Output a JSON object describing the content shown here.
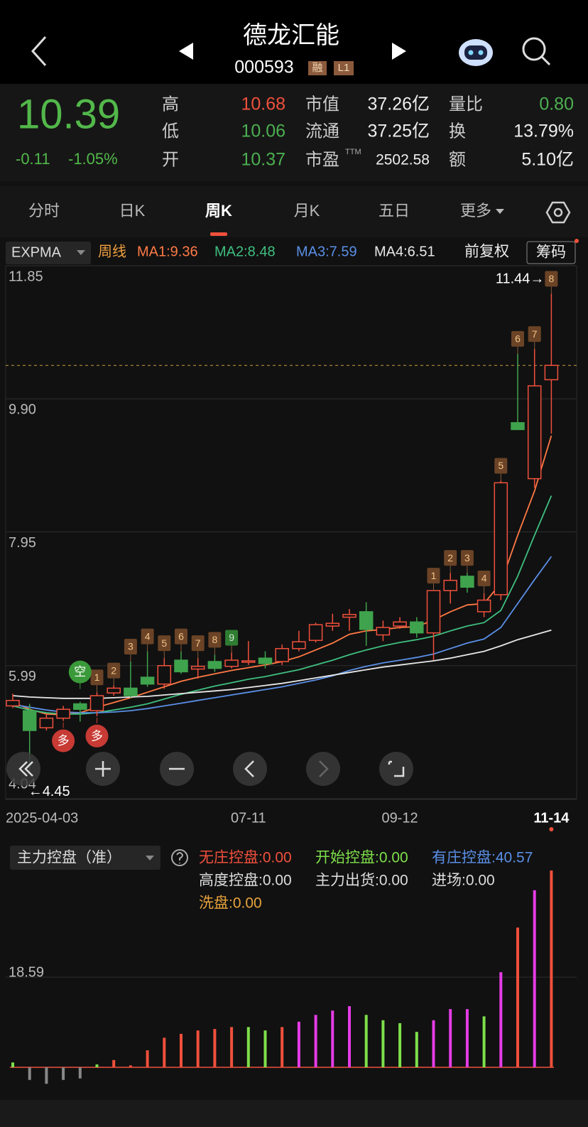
{
  "header": {
    "title": "德龙汇能",
    "code": "000593",
    "badges": [
      "融",
      "L1"
    ]
  },
  "quote": {
    "price": 10.39,
    "change": "-0.11",
    "change_pct": "-1.05%",
    "fields": [
      {
        "label": "高",
        "value": "10.68",
        "color": "#f0503c"
      },
      {
        "label": "低",
        "value": "10.06",
        "color": "#4caf50"
      },
      {
        "label": "开",
        "value": "10.37",
        "color": "#4caf50"
      },
      {
        "label": "市值",
        "value": "37.26亿",
        "color": "#eeeeee"
      },
      {
        "label": "流通",
        "value": "37.25亿",
        "color": "#eeeeee"
      },
      {
        "label": "市盈",
        "sup": "TTM",
        "value": "2502.58",
        "color": "#eeeeee"
      },
      {
        "label": "量比",
        "value": "0.80",
        "color": "#4caf50"
      },
      {
        "label": "换",
        "value": "13.79%",
        "color": "#eeeeee"
      },
      {
        "label": "额",
        "value": "5.10亿",
        "color": "#eeeeee"
      }
    ]
  },
  "tabs": [
    "分时",
    "日K",
    "周K",
    "月K",
    "五日",
    "更多"
  ],
  "active_tab": 2,
  "toolbar": {
    "indicator": "EXPMA",
    "period": "周线",
    "adjust": "前复权",
    "chips": "筹码"
  },
  "kline": {
    "type": "candlestick",
    "dates": [
      "2025-04-03",
      null,
      null,
      null,
      null,
      null,
      null,
      null,
      null,
      null,
      null,
      null,
      null,
      null,
      "07-11",
      null,
      null,
      null,
      null,
      null,
      null,
      null,
      null,
      "09-12",
      null,
      null,
      null,
      null,
      null,
      null,
      null,
      null,
      "11-14"
    ],
    "open": [
      5.4,
      5.33,
      5.08,
      5.22,
      5.43,
      5.33,
      5.59,
      5.66,
      5.82,
      5.72,
      6.07,
      5.94,
      6.05,
      5.98,
      6.04,
      6.1,
      6.05,
      6.24,
      6.36,
      6.57,
      6.7,
      6.78,
      6.44,
      6.57,
      6.63,
      6.47,
      7.09,
      7.3,
      6.78,
      7.03,
      9.55,
      8.73,
      10.18
    ],
    "high": [
      5.58,
      5.43,
      5.27,
      5.4,
      5.46,
      5.6,
      5.7,
      6.05,
      6.2,
      6.1,
      6.2,
      6.1,
      6.15,
      6.18,
      6.35,
      6.2,
      6.3,
      6.5,
      6.62,
      6.75,
      6.82,
      6.92,
      6.65,
      6.7,
      6.7,
      7.09,
      7.35,
      7.35,
      7.05,
      8.7,
      10.56,
      10.63,
      11.44
    ],
    "low": [
      5.37,
      4.45,
      5.04,
      5.18,
      5.17,
      5.25,
      5.55,
      5.52,
      5.68,
      5.65,
      5.87,
      5.8,
      5.9,
      5.95,
      6.0,
      5.95,
      6.0,
      6.2,
      6.33,
      6.5,
      6.5,
      6.28,
      6.35,
      6.53,
      6.4,
      6.07,
      6.9,
      7.06,
      6.7,
      6.95,
      9.45,
      8.6,
      9.39
    ],
    "close": [
      5.48,
      5.04,
      5.22,
      5.35,
      5.35,
      5.55,
      5.66,
      5.55,
      5.72,
      5.99,
      5.9,
      5.98,
      5.95,
      6.07,
      6.06,
      6.02,
      6.24,
      6.34,
      6.59,
      6.61,
      6.74,
      6.52,
      6.55,
      6.63,
      6.47,
      7.09,
      7.24,
      7.14,
      6.95,
      8.67,
      9.45,
      10.09,
      10.39
    ],
    "ylim": [
      4.04,
      11.85
    ],
    "yticks": [
      11.85,
      {
        "value": 9.9,
        "label": "9.90"
      },
      7.95,
      5.99,
      4.04
    ],
    "ma": [
      {
        "name": "MA1:9.36",
        "color": "#ff7a45",
        "values": [
          5.45,
          5.35,
          5.28,
          5.27,
          5.3,
          5.38,
          5.45,
          5.52,
          5.6,
          5.68,
          5.76,
          5.82,
          5.87,
          5.92,
          5.96,
          6.0,
          6.05,
          6.12,
          6.22,
          6.32,
          6.45,
          6.5,
          6.52,
          6.55,
          6.56,
          6.66,
          6.78,
          6.88,
          6.9,
          7.2,
          7.9,
          8.55,
          9.36
        ]
      },
      {
        "name": "MA2:8.48",
        "color": "#3fbf7f",
        "values": [
          5.4,
          5.34,
          5.3,
          5.28,
          5.28,
          5.3,
          5.34,
          5.38,
          5.43,
          5.5,
          5.57,
          5.63,
          5.69,
          5.74,
          5.79,
          5.83,
          5.88,
          5.93,
          6.0,
          6.07,
          6.15,
          6.22,
          6.28,
          6.33,
          6.37,
          6.42,
          6.5,
          6.57,
          6.62,
          6.8,
          7.3,
          7.9,
          8.48
        ]
      },
      {
        "name": "MA3:7.59",
        "color": "#5a8fe6",
        "values": [
          5.42,
          5.38,
          5.34,
          5.31,
          5.3,
          5.3,
          5.31,
          5.33,
          5.36,
          5.4,
          5.44,
          5.48,
          5.52,
          5.56,
          5.6,
          5.64,
          5.68,
          5.73,
          5.78,
          5.84,
          5.92,
          5.98,
          6.03,
          6.07,
          6.11,
          6.16,
          6.24,
          6.32,
          6.38,
          6.55,
          6.9,
          7.25,
          7.59
        ]
      },
      {
        "name": "MA4:6.51",
        "color": "#e8e8e8",
        "values": [
          5.55,
          5.53,
          5.52,
          5.51,
          5.51,
          5.51,
          5.52,
          5.53,
          5.54,
          5.56,
          5.58,
          5.6,
          5.62,
          5.64,
          5.67,
          5.7,
          5.73,
          5.77,
          5.81,
          5.85,
          5.89,
          5.93,
          5.97,
          6.0,
          6.03,
          6.06,
          6.1,
          6.15,
          6.2,
          6.28,
          6.37,
          6.44,
          6.51
        ]
      }
    ],
    "high_label": "11.44→",
    "low_label": "←4.45",
    "signals": [
      {
        "at": 5,
        "label": "1"
      },
      {
        "at": 6,
        "label": "2"
      },
      {
        "at": 7,
        "label": "3"
      },
      {
        "at": 8,
        "label": "4"
      },
      {
        "at": 9,
        "label": "5"
      },
      {
        "at": 10,
        "label": "6"
      },
      {
        "at": 11,
        "label": "7"
      },
      {
        "at": 12,
        "label": "8"
      },
      {
        "at": 13,
        "label": "9",
        "color": "#2f7d32"
      },
      {
        "at": 25,
        "label": "1"
      },
      {
        "at": 26,
        "label": "2"
      },
      {
        "at": 27,
        "label": "3"
      },
      {
        "at": 28,
        "label": "4"
      },
      {
        "at": 29,
        "label": "5"
      },
      {
        "at": 30,
        "label": "6"
      },
      {
        "at": 31,
        "label": "7"
      },
      {
        "at": 32,
        "label": "8"
      }
    ],
    "markers": [
      {
        "at": 4,
        "label": "空",
        "color": "#3a9a3a",
        "side": "above"
      },
      {
        "at": 3,
        "label": "多",
        "color": "#c83a34",
        "side": "below"
      },
      {
        "at": 5,
        "label": "多",
        "color": "#c83a34",
        "side": "below"
      }
    ]
  },
  "indicator": {
    "type": "bar",
    "name": "主力控盘（准）",
    "legend": [
      {
        "label": "无庄控盘:0.00",
        "color": "#f0503c"
      },
      {
        "label": "开始控盘:0.00",
        "color": "#7ee04a"
      },
      {
        "label": "有庄控盘:40.57",
        "color": "#5a8fe6"
      },
      {
        "label": "高度控盘:0.00",
        "color": "#dddddd"
      },
      {
        "label": "主力出货:0.00",
        "color": "#dddddd"
      },
      {
        "label": "进场:0.00",
        "color": "#dddddd"
      },
      {
        "label": "洗盘:0.00",
        "color": "#e8a33c"
      }
    ],
    "values": [
      1.0,
      -2.6,
      -3.4,
      -2.6,
      -2.3,
      0.6,
      1.5,
      0.4,
      3.5,
      6.1,
      6.9,
      7.6,
      7.9,
      8.3,
      8.3,
      7.6,
      8.3,
      9.4,
      10.8,
      11.7,
      12.6,
      10.8,
      9.7,
      9.1,
      7.3,
      9.7,
      12.0,
      12.0,
      10.5,
      19.6,
      28.8,
      36.5,
      40.57
    ],
    "colors": [
      "#7ee04a",
      "#888888",
      "#888888",
      "#888888",
      "#888888",
      "#7ee04a",
      "#f0503c",
      "#f0503c",
      "#f0503c",
      "#f0503c",
      "#f0503c",
      "#f0503c",
      "#f0503c",
      "#f0503c",
      "#7ee04a",
      "#7ee04a",
      "#f0503c",
      "#e53ce5",
      "#e53ce5",
      "#e53ce5",
      "#e53ce5",
      "#7ee04a",
      "#7ee04a",
      "#7ee04a",
      "#7ee04a",
      "#e53ce5",
      "#e53ce5",
      "#e53ce5",
      "#7ee04a",
      "#e53ce5",
      "#f0503c",
      "#e53ce5",
      "#f0503c"
    ],
    "ylim": [
      -4.1,
      40.57
    ],
    "yticks": [
      18.59
    ]
  }
}
